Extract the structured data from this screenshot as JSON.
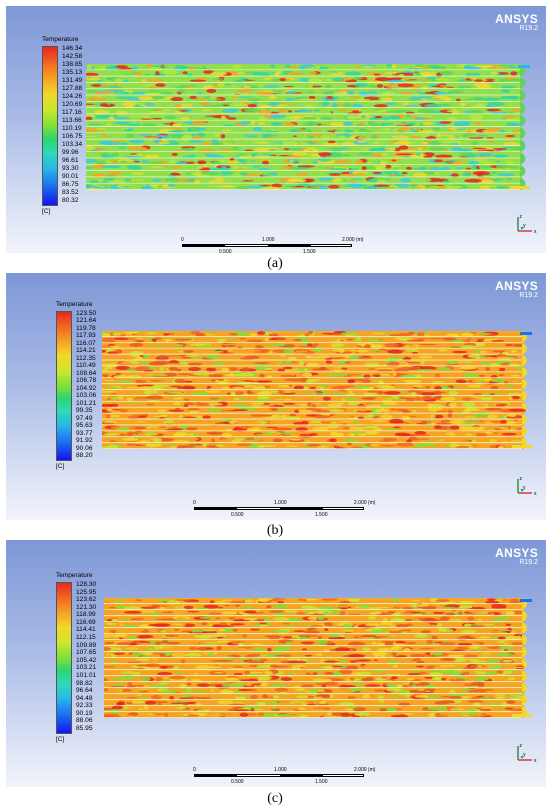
{
  "panels": [
    {
      "id": "a",
      "caption": "(a)",
      "brand": "ANSYS",
      "version": "R19.2",
      "legend_title": "Temperature",
      "legend_unit": "[C]",
      "legend_ticks": [
        "146.34",
        "142.58",
        "138.85",
        "135.13",
        "131.49",
        "127.88",
        "124.26",
        "120.69",
        "117.16",
        "113.66",
        "110.19",
        "106.75",
        "103.34",
        "99.96",
        "96.61",
        "93.30",
        "90.01",
        "86.75",
        "83.52",
        "80.32"
      ],
      "scale_labels": {
        "zero": "0",
        "mid_top": "1.000",
        "max": "2.000 (m)",
        "q1": "0.500",
        "q3": "1.500"
      },
      "field_mix": "green"
    },
    {
      "id": "b",
      "caption": "(b)",
      "brand": "ANSYS",
      "version": "R19.2",
      "legend_title": "Temperature",
      "legend_unit": "[C]",
      "legend_ticks": [
        "123.50",
        "121.64",
        "119.78",
        "117.93",
        "116.07",
        "114.21",
        "112.35",
        "110.49",
        "108.64",
        "106.78",
        "104.92",
        "103.06",
        "101.21",
        "99.35",
        "97.49",
        "95.63",
        "93.77",
        "91.92",
        "90.06",
        "88.20"
      ],
      "scale_labels": {
        "zero": "0",
        "mid_top": "1.000",
        "max": "2.000 (m)",
        "q1": "0.500",
        "q3": "1.500"
      },
      "field_mix": "orange"
    },
    {
      "id": "c",
      "caption": "(c)",
      "brand": "ANSYS",
      "version": "R19.2",
      "legend_title": "Temperature",
      "legend_unit": "[C]",
      "legend_ticks": [
        "128.30",
        "125.95",
        "123.62",
        "121.30",
        "118.99",
        "116.69",
        "114.41",
        "112.15",
        "109.89",
        "107.65",
        "105.42",
        "103.21",
        "101.01",
        "98.82",
        "96.64",
        "94.48",
        "92.33",
        "90.19",
        "88.06",
        "85.95"
      ],
      "scale_labels": {
        "zero": "0",
        "mid_top": "1.000",
        "max": "2.000 (m)",
        "q1": "0.500",
        "q3": "1.500"
      },
      "field_mix": "orange"
    }
  ]
}
